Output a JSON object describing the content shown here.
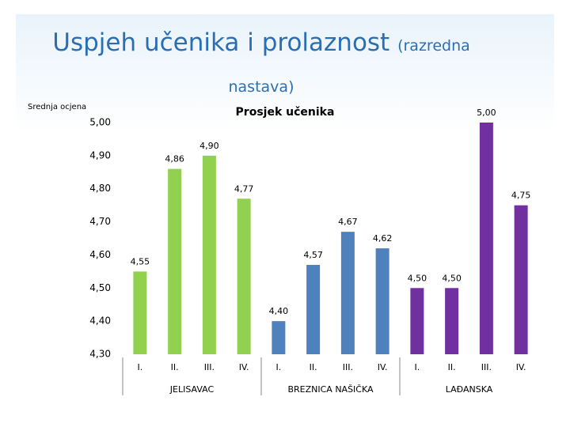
{
  "slide": {
    "title": "Uspjeh učenika i prolaznost",
    "subtitle": "(razredna nastava)"
  },
  "chart_data": {
    "type": "bar",
    "title": "Prosjek učenika",
    "y_label": "Srednja ocjena",
    "ylim": [
      4.3,
      5.0
    ],
    "yticks": [
      {
        "value": 4.3,
        "label": "4,30"
      },
      {
        "value": 4.4,
        "label": "4,40"
      },
      {
        "value": 4.5,
        "label": "4,50"
      },
      {
        "value": 4.6,
        "label": "4,60"
      },
      {
        "value": 4.7,
        "label": "4,70"
      },
      {
        "value": 4.8,
        "label": "4,80"
      },
      {
        "value": 4.9,
        "label": "4,90"
      },
      {
        "value": 5.0,
        "label": "5,00"
      }
    ],
    "grid": false,
    "groups": [
      {
        "name": "JELISAVAC",
        "color": "#92d050",
        "categories": [
          "I.",
          "II.",
          "III.",
          "IV."
        ],
        "values": [
          4.55,
          4.86,
          4.9,
          4.77
        ],
        "value_labels": [
          "4,55",
          "4,86",
          "4,90",
          "4,77"
        ]
      },
      {
        "name": "BREZNICA NAŠIČKA",
        "color": "#4f81bd",
        "categories": [
          "I.",
          "II.",
          "III.",
          "IV."
        ],
        "values": [
          4.4,
          4.57,
          4.67,
          4.62
        ],
        "value_labels": [
          "4,40",
          "4,57",
          "4,67",
          "4,62"
        ]
      },
      {
        "name": "LAĐANSKA",
        "color": "#7030a0",
        "categories": [
          "I.",
          "II.",
          "III.",
          "IV."
        ],
        "values": [
          4.5,
          4.5,
          5.0,
          4.75
        ],
        "value_labels": [
          "4,50",
          "4,50",
          "5,00",
          "4,75"
        ]
      }
    ]
  }
}
